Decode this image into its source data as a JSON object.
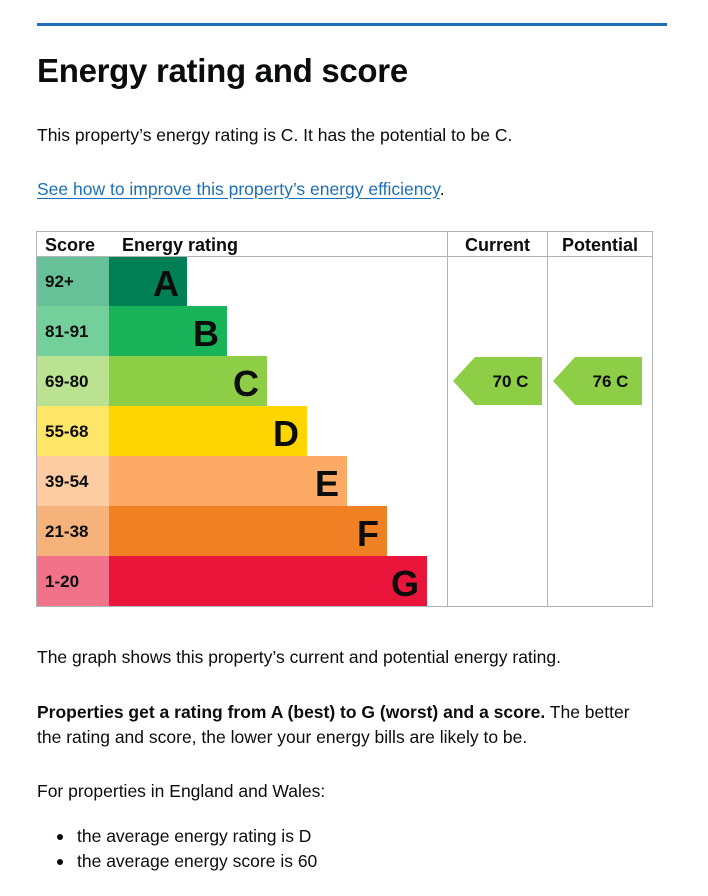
{
  "page": {
    "title": "Energy rating and score",
    "summary": "This property’s energy rating is C. It has the potential to be C.",
    "improve_link": "See how to improve this property’s energy efficiency",
    "improve_link_suffix": ".",
    "graph_description": "The graph shows this property’s current and potential energy rating.",
    "explanation_bold": "Properties get a rating from A (best) to G (worst) and a score.",
    "explanation_rest": " The better the rating and score, the lower your energy bills are likely to be.",
    "regional_intro": "For properties in England and Wales:",
    "bullets": [
      "the average energy rating is D",
      "the average energy score is 60"
    ]
  },
  "colors": {
    "accent_line": "#1d70b8",
    "link": "#1d70b8",
    "text": "#0b0c0c",
    "grid": "#b1b4b6"
  },
  "chart_data": {
    "type": "table",
    "headers": [
      "Score",
      "Energy rating",
      "Current",
      "Potential"
    ],
    "bands": [
      {
        "score": "92+",
        "letter": "A",
        "color": "#008054",
        "score_bg": "#66c098"
      },
      {
        "score": "81-91",
        "letter": "B",
        "color": "#19b459",
        "score_bg": "#73d09b"
      },
      {
        "score": "69-80",
        "letter": "C",
        "color": "#8dce46",
        "score_bg": "#bae291"
      },
      {
        "score": "55-68",
        "letter": "D",
        "color": "#ffd500",
        "score_bg": "#ffe666"
      },
      {
        "score": "39-54",
        "letter": "E",
        "color": "#fcaa65",
        "score_bg": "#fdcca3"
      },
      {
        "score": "21-38",
        "letter": "F",
        "color": "#ef8023",
        "score_bg": "#f5b37b"
      },
      {
        "score": "1-20",
        "letter": "G",
        "color": "#e9153b",
        "score_bg": "#f27389"
      }
    ],
    "current": {
      "score": 70,
      "rating": "C",
      "label": "70  C"
    },
    "potential": {
      "score": 76,
      "rating": "C",
      "label": "76  C"
    }
  }
}
